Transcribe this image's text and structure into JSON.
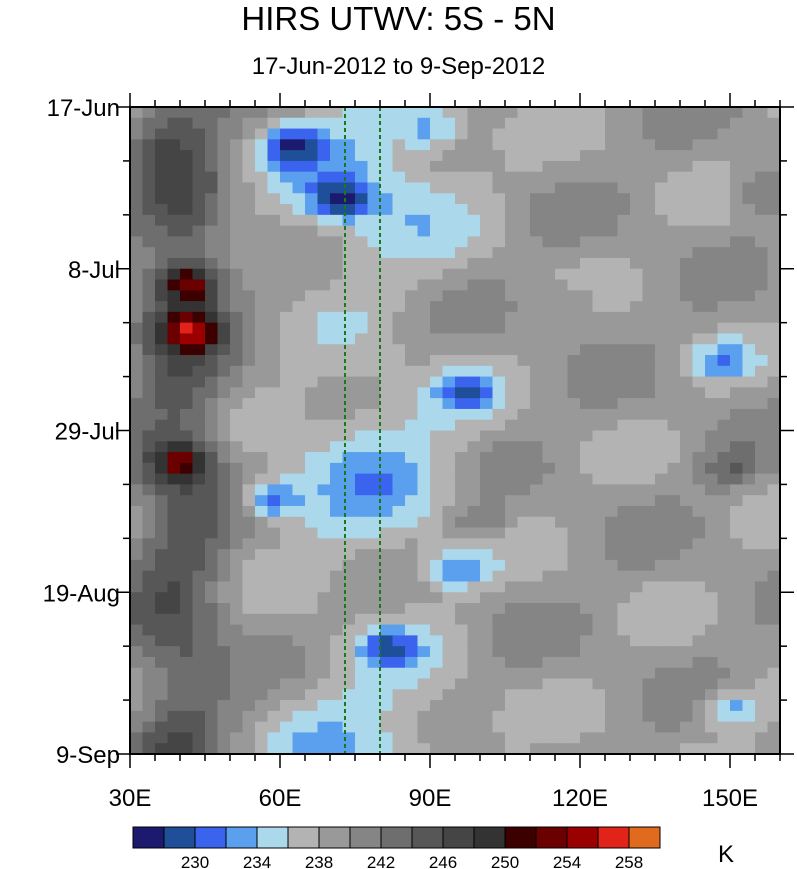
{
  "chart_data": {
    "type": "heatmap",
    "title": "HIRS UTWV: 5S - 5N",
    "subtitle": "17-Jun-2012 to 9-Sep-2012",
    "x_ticks": [
      {
        "value": 30,
        "label": "30E"
      },
      {
        "value": 60,
        "label": "60E"
      },
      {
        "value": 90,
        "label": "90E"
      },
      {
        "value": 120,
        "label": "120E"
      },
      {
        "value": 150,
        "label": "150E"
      }
    ],
    "x_range": [
      30,
      160
    ],
    "y_ticks": [
      {
        "day": 0,
        "label": "17-Jun"
      },
      {
        "day": 21,
        "label": "8-Jul"
      },
      {
        "day": 42,
        "label": "29-Jul"
      },
      {
        "day": 63,
        "label": "19-Aug"
      },
      {
        "day": 84,
        "label": "9-Sep"
      }
    ],
    "y_range_dates": [
      "17-Jun-2012",
      "9-Sep-2012"
    ],
    "y_reversed": true,
    "reference_lines": [
      73,
      80
    ],
    "colorbar": {
      "unit": "K",
      "levels": [
        228,
        230,
        232,
        234,
        236,
        238,
        240,
        242,
        244,
        246,
        248,
        250,
        252,
        254,
        256,
        258,
        260
      ],
      "tick_labels": [
        "230",
        "234",
        "238",
        "242",
        "246",
        "250",
        "254",
        "258"
      ],
      "colors": [
        "#1b1a6e",
        "#1f4f99",
        "#3a63ee",
        "#5aa0ee",
        "#acd8ec",
        "#b3b3b3",
        "#999999",
        "#858585",
        "#6e6e6e",
        "#575757",
        "#454545",
        "#333333",
        "#3d0000",
        "#6b0000",
        "#9a0000",
        "#e2231a",
        "#e06b1e"
      ]
    },
    "features": [
      {
        "lon": 35,
        "day": 4,
        "value": 244
      },
      {
        "lon": 42,
        "day": 23,
        "value": 256
      },
      {
        "lon": 42,
        "day": 29,
        "value": 255
      },
      {
        "lon": 40,
        "day": 46,
        "value": 254
      },
      {
        "lon": 62,
        "day": 5,
        "value": 229
      },
      {
        "lon": 72,
        "day": 12,
        "value": 230
      },
      {
        "lon": 58,
        "day": 51,
        "value": 229
      },
      {
        "lon": 95,
        "day": 60,
        "value": 232
      },
      {
        "lon": 82,
        "day": 70,
        "value": 232
      },
      {
        "lon": 150,
        "day": 78,
        "value": 232
      },
      {
        "lon": 97,
        "day": 37,
        "value": 232
      },
      {
        "lon": 148,
        "day": 33,
        "value": 234
      },
      {
        "lon": 90,
        "day": 3,
        "value": 234
      },
      {
        "lon": 155,
        "day": 11,
        "value": 246
      },
      {
        "lon": 150,
        "day": 47,
        "value": 247
      },
      {
        "lon": 100,
        "day": 54,
        "value": 246
      },
      {
        "lon": 120,
        "day": 25,
        "value": 244
      }
    ]
  }
}
